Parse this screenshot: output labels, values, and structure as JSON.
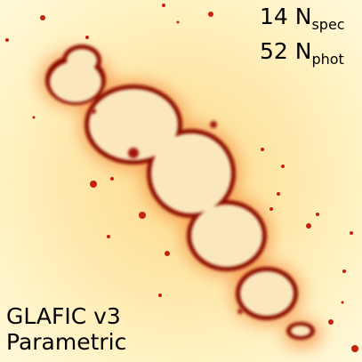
{
  "annotations": [
    {
      "count": "14",
      "symbol": "N",
      "subscript": "spec"
    },
    {
      "count": "52",
      "symbol": "N",
      "subscript": "phot"
    }
  ],
  "caption": [
    "GLAFIC v3",
    "Parametric"
  ]
}
